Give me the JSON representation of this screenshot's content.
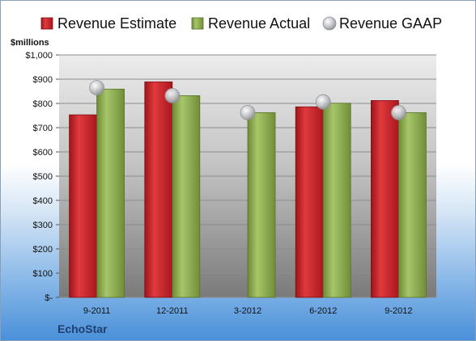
{
  "chart_data": {
    "type": "bar",
    "ylabel": "$millions",
    "categories": [
      "9-2011",
      "12-2011",
      "3-2012",
      "6-2012",
      "9-2012"
    ],
    "series": [
      {
        "name": "Revenue Estimate",
        "kind": "bar",
        "color": "#c8202a",
        "values": [
          753,
          889,
          null,
          786,
          812
        ]
      },
      {
        "name": "Revenue Actual",
        "kind": "bar",
        "color": "#92b050",
        "values": [
          859,
          832,
          762,
          801,
          762
        ]
      },
      {
        "name": "Revenue GAAP",
        "kind": "marker",
        "color": "#b8bcc2",
        "values": [
          865,
          832,
          762,
          806,
          762
        ]
      }
    ],
    "yticks": [
      "$-",
      "$100",
      "$200",
      "$300",
      "$400",
      "$500",
      "$600",
      "$700",
      "$800",
      "$900",
      "$1,000"
    ],
    "ylim": [
      0,
      1000
    ],
    "grid": true,
    "legend_position": "top",
    "company": "EchoStar"
  }
}
